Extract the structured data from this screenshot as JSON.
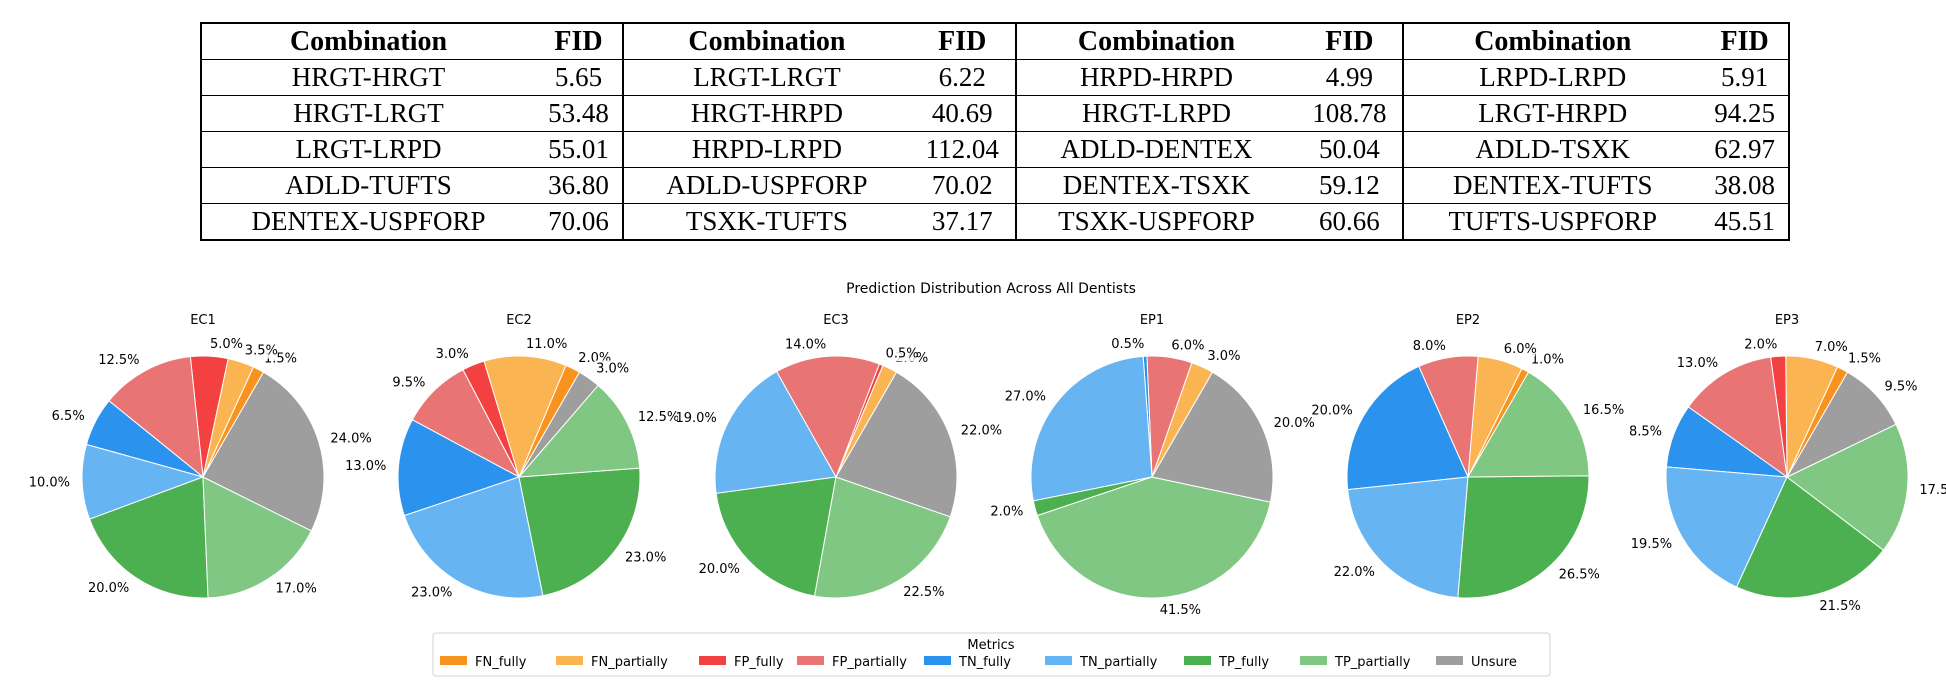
{
  "fid_table": {
    "header_combination": "Combination",
    "header_fid": "FID",
    "rows": [
      [
        [
          "HRGT-HRGT",
          "5.65"
        ],
        [
          "LRGT-LRGT",
          "6.22"
        ],
        [
          "HRPD-HRPD",
          "4.99"
        ],
        [
          "LRPD-LRPD",
          "5.91"
        ]
      ],
      [
        [
          "HRGT-LRGT",
          "53.48"
        ],
        [
          "HRGT-HRPD",
          "40.69"
        ],
        [
          "HRGT-LRPD",
          "108.78"
        ],
        [
          "LRGT-HRPD",
          "94.25"
        ]
      ],
      [
        [
          "LRGT-LRPD",
          "55.01"
        ],
        [
          "HRPD-LRPD",
          "112.04"
        ],
        [
          "ADLD-DENTEX",
          "50.04"
        ],
        [
          "ADLD-TSXK",
          "62.97"
        ]
      ],
      [
        [
          "ADLD-TUFTS",
          "36.80"
        ],
        [
          "ADLD-USPFORP",
          "70.02"
        ],
        [
          "DENTEX-TSXK",
          "59.12"
        ],
        [
          "DENTEX-TUFTS",
          "38.08"
        ]
      ],
      [
        [
          "DENTEX-USPFORP",
          "70.06"
        ],
        [
          "TSXK-TUFTS",
          "37.17"
        ],
        [
          "TSXK-USPFORP",
          "60.66"
        ],
        [
          "TUFTS-USPFORP",
          "45.51"
        ]
      ]
    ]
  },
  "chart_data": {
    "type": "pie",
    "title": "Prediction Distribution Across All Dentists",
    "legend_title": "Metrics",
    "legend_placement": "bottom-center",
    "categories": [
      "FN_fully",
      "FN_partially",
      "FP_fully",
      "FP_partially",
      "TN_fully",
      "TN_partially",
      "TP_fully",
      "TP_partially",
      "Unsure"
    ],
    "colors": [
      "#f7931e",
      "#fbb452",
      "#f34040",
      "#e87474",
      "#2b93ee",
      "#66b4f1",
      "#4caf50",
      "#80c783",
      "#9e9e9e"
    ],
    "pies": [
      {
        "name": "EC1",
        "values": [
          1.5,
          3.5,
          5.0,
          12.5,
          6.5,
          10.0,
          20.0,
          17.0,
          24.0
        ]
      },
      {
        "name": "EC2",
        "values": [
          2.0,
          11.0,
          3.0,
          9.5,
          13.0,
          23.0,
          23.0,
          12.5,
          3.0
        ]
      },
      {
        "name": "EC3",
        "values": [
          0.0,
          2.0,
          0.5,
          14.0,
          0.0,
          19.0,
          20.0,
          22.5,
          22.0
        ]
      },
      {
        "name": "EP1",
        "values": [
          0.0,
          3.0,
          0.0,
          6.0,
          0.5,
          27.0,
          2.0,
          41.5,
          20.0
        ]
      },
      {
        "name": "EP2",
        "values": [
          1.0,
          6.0,
          0.0,
          8.0,
          20.0,
          22.0,
          26.5,
          16.5,
          0.0
        ]
      },
      {
        "name": "EP3",
        "values": [
          1.5,
          7.0,
          2.0,
          13.0,
          8.5,
          19.5,
          21.5,
          17.5,
          9.5
        ]
      }
    ]
  }
}
